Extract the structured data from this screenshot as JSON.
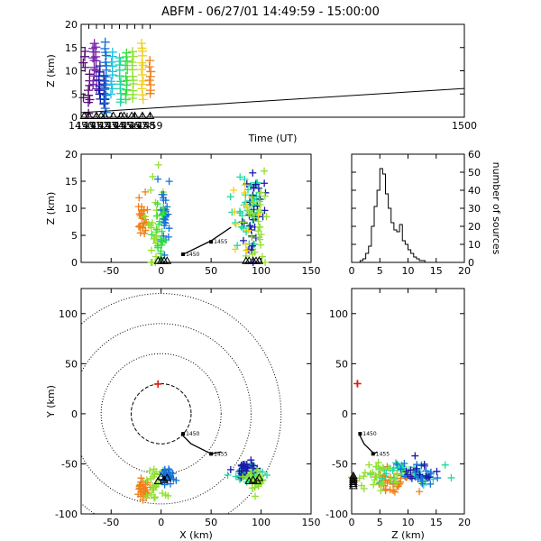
{
  "title": "ABFM - 06/27/01 14:49:59 - 15:00:00",
  "colors": {
    "purple": "#5a0a78",
    "violet": "#7a2aa8",
    "navy": "#1a1aa8",
    "blue": "#1470d8",
    "cyan": "#20c0e8",
    "teal": "#20d8a0",
    "green": "#30e040",
    "lime": "#90e030",
    "yellow": "#f0d020",
    "orange": "#f08018",
    "red": "#d82010"
  },
  "chart_data": [
    {
      "id": "time-height",
      "type": "scatter",
      "xlabel": "Time (UT)",
      "ylabel": "Z (km)",
      "xlim": [
        1450,
        1500
      ],
      "ylim": [
        0,
        20
      ],
      "xticks": [
        "1450",
        "1451",
        "1452",
        "1453",
        "1454",
        "1455",
        "1456",
        "1457",
        "1458",
        "1459",
        "1500"
      ],
      "yticks": [
        "0",
        "5",
        "10",
        "15",
        "20"
      ],
      "groups": [
        {
          "color": "purple",
          "x": 1450.4,
          "y": [
            4,
            11,
            12,
            13,
            14
          ]
        },
        {
          "color": "purple",
          "x": 1451.0,
          "y": [
            1,
            3,
            4,
            5,
            6,
            7,
            8,
            9
          ]
        },
        {
          "color": "violet",
          "x": 1451.6,
          "y": [
            7,
            8,
            9,
            10,
            11,
            12,
            13,
            14,
            15,
            16
          ]
        },
        {
          "color": "violet",
          "x": 1452.0,
          "y": [
            6,
            8,
            10,
            12,
            13,
            14,
            15
          ]
        },
        {
          "color": "navy",
          "x": 1452.4,
          "y": [
            4,
            5,
            6,
            7,
            8,
            9,
            10,
            11
          ]
        },
        {
          "color": "navy",
          "x": 1453.0,
          "y": [
            3,
            4,
            5,
            6,
            7,
            8,
            9
          ]
        },
        {
          "color": "blue",
          "x": 1453.2,
          "y": [
            1,
            2,
            3,
            4,
            5,
            6,
            7,
            8,
            9,
            10,
            11,
            12,
            13,
            14,
            15,
            16
          ]
        },
        {
          "color": "cyan",
          "x": 1454.0,
          "y": [
            5,
            6,
            7,
            8,
            9,
            10,
            11,
            12,
            13,
            14
          ]
        },
        {
          "color": "teal",
          "x": 1455.1,
          "y": [
            3,
            4,
            5,
            6,
            7,
            8,
            9,
            10,
            11,
            12,
            13
          ]
        },
        {
          "color": "green",
          "x": 1455.9,
          "y": [
            4,
            5,
            6,
            7,
            8,
            9,
            10,
            11,
            12,
            13,
            14
          ]
        },
        {
          "color": "lime",
          "x": 1456.7,
          "y": [
            4,
            5,
            6,
            7,
            8,
            9,
            10,
            11,
            12,
            13,
            14
          ]
        },
        {
          "color": "yellow",
          "x": 1458.0,
          "y": [
            4,
            5,
            6,
            7,
            8,
            9,
            10,
            11,
            12,
            13,
            14,
            15,
            16
          ]
        },
        {
          "color": "orange",
          "x": 1459.0,
          "y": [
            5,
            6,
            7,
            8,
            9,
            10,
            11,
            12
          ]
        }
      ],
      "trend_line": {
        "x": [
          1450,
          1500
        ],
        "y": [
          1,
          6.2
        ]
      },
      "triangles_x": [
        1450.4,
        1451.0,
        1452.0,
        1452.6,
        1453.1,
        1454.2,
        1455.2,
        1455.6,
        1456.6,
        1457.0,
        1458.0,
        1459.0
      ]
    },
    {
      "id": "x-height",
      "type": "scatter",
      "ylabel": "Z (km)",
      "xlim": [
        -80,
        150
      ],
      "ylim": [
        0,
        20
      ],
      "xticks": [
        "-50",
        "0",
        "50",
        "100",
        "150"
      ],
      "yticks": [
        "0",
        "5",
        "10",
        "15",
        "20"
      ],
      "clusters": [
        {
          "color": "orange",
          "cx": -18,
          "cy": 8,
          "sx": 2.5,
          "sy": 2,
          "n": 30
        },
        {
          "color": "lime",
          "cx": -5,
          "cy": 7,
          "sx": 4,
          "sy": 4,
          "n": 28
        },
        {
          "color": "blue",
          "cx": 3,
          "cy": 10,
          "sx": 3,
          "sy": 4,
          "n": 28
        },
        {
          "color": "green",
          "cx": 0,
          "cy": 5,
          "sx": 3,
          "sy": 3,
          "n": 20
        },
        {
          "color": "teal",
          "cx": 88,
          "cy": 10,
          "sx": 6,
          "sy": 4,
          "n": 50
        },
        {
          "color": "navy",
          "cx": 92,
          "cy": 9,
          "sx": 6,
          "sy": 4,
          "n": 30
        },
        {
          "color": "lime",
          "cx": 95,
          "cy": 6,
          "sx": 6,
          "sy": 4,
          "n": 30
        },
        {
          "color": "yellow",
          "cx": 80,
          "cy": 8,
          "sx": 8,
          "sy": 4,
          "n": 12
        }
      ],
      "track": {
        "x": [
          20,
          50,
          70
        ],
        "y": [
          1.3,
          4,
          6.5
        ]
      },
      "track_labels": [
        {
          "text": "1450",
          "x": 22,
          "y": 1.5
        },
        {
          "text": "1455",
          "x": 50,
          "y": 3.8
        }
      ],
      "triangles_x": [
        -3,
        0,
        3,
        6,
        85,
        88,
        92,
        95,
        98
      ]
    },
    {
      "id": "histogram",
      "type": "bar",
      "ylabel": "number of sources",
      "xlim": [
        0,
        20
      ],
      "ylim": [
        0,
        60
      ],
      "xticks": [
        "0",
        "5",
        "10",
        "15",
        "20"
      ],
      "yticks": [
        "0",
        "10",
        "20",
        "30",
        "40",
        "50",
        "60"
      ],
      "bin_width": 0.5,
      "values": [
        0,
        0,
        0,
        1,
        2,
        5,
        9,
        20,
        31,
        40,
        52,
        49,
        38,
        30,
        22,
        18,
        17,
        21,
        12,
        10,
        7,
        5,
        3,
        2,
        1,
        1,
        0,
        0,
        0,
        0,
        0,
        0,
        0,
        0,
        0,
        0,
        0,
        0,
        0,
        0
      ]
    },
    {
      "id": "plan-view",
      "type": "scatter",
      "xlabel": "X (km)",
      "ylabel": "Y (km)",
      "xlim": [
        -80,
        150
      ],
      "ylim": [
        -100,
        125
      ],
      "xticks": [
        "-50",
        "0",
        "50",
        "100",
        "150"
      ],
      "yticks": [
        "-100",
        "-50",
        "0",
        "50",
        "100"
      ],
      "range_rings_km": [
        30,
        60,
        90,
        120
      ],
      "clusters": [
        {
          "color": "orange",
          "cx": -18,
          "cy": -77,
          "sx": 3,
          "sy": 6,
          "n": 30
        },
        {
          "color": "lime",
          "cx": -5,
          "cy": -70,
          "sx": 5,
          "sy": 8,
          "n": 25
        },
        {
          "color": "blue",
          "cx": 5,
          "cy": -62,
          "sx": 4,
          "sy": 5,
          "n": 25
        },
        {
          "color": "teal",
          "cx": 90,
          "cy": -62,
          "sx": 7,
          "sy": 5,
          "n": 40
        },
        {
          "color": "navy",
          "cx": 85,
          "cy": -55,
          "sx": 5,
          "sy": 4,
          "n": 25
        },
        {
          "color": "lime",
          "cx": 95,
          "cy": -65,
          "sx": 6,
          "sy": 5,
          "n": 25
        },
        {
          "color": "red",
          "cx": -3,
          "cy": 30,
          "sx": 0.5,
          "sy": 0.5,
          "n": 2
        }
      ],
      "track": {
        "x": [
          20,
          30,
          50,
          60
        ],
        "y": [
          -20,
          -30,
          -40,
          -38
        ]
      },
      "track_labels": [
        {
          "text": "1450",
          "x": 22,
          "y": -20
        },
        {
          "text": "1455",
          "x": 50,
          "y": -40
        }
      ],
      "triangles": [
        [
          0,
          -63
        ],
        [
          3,
          -66
        ],
        [
          6,
          -64
        ],
        [
          -3,
          -67
        ],
        [
          92,
          -66
        ],
        [
          96,
          -67
        ],
        [
          98,
          -64
        ],
        [
          88,
          -67
        ]
      ]
    },
    {
      "id": "z-y",
      "type": "scatter",
      "xlabel": "Z (km)",
      "xlim": [
        0,
        20
      ],
      "ylim": [
        -100,
        125
      ],
      "xticks": [
        "0",
        "5",
        "10",
        "15",
        "20"
      ],
      "yticks": [
        "-100",
        "-50",
        "0",
        "50",
        "100"
      ],
      "clusters": [
        {
          "color": "orange",
          "cx": 7,
          "cy": -68,
          "sx": 2,
          "sy": 6,
          "n": 40
        },
        {
          "color": "teal",
          "cx": 10,
          "cy": -60,
          "sx": 3,
          "sy": 6,
          "n": 40
        },
        {
          "color": "lime",
          "cx": 6,
          "cy": -62,
          "sx": 3,
          "sy": 6,
          "n": 30
        },
        {
          "color": "blue",
          "cx": 12,
          "cy": -60,
          "sx": 2,
          "sy": 5,
          "n": 20
        },
        {
          "color": "navy",
          "cx": 13,
          "cy": -58,
          "sx": 2,
          "sy": 5,
          "n": 15
        },
        {
          "color": "red",
          "cx": 1,
          "cy": 30,
          "sx": 0.2,
          "sy": 1,
          "n": 2
        }
      ],
      "track": {
        "x": [
          1.3,
          2.2,
          4,
          4.5
        ],
        "y": [
          -20,
          -30,
          -40,
          -38
        ]
      },
      "track_labels": [
        {
          "text": "1450",
          "x": 1.5,
          "y": -20
        },
        {
          "text": "1455",
          "x": 3.8,
          "y": -40
        }
      ],
      "triangles_y": [
        -62,
        -64,
        -66,
        -68,
        -70,
        -72
      ]
    }
  ]
}
